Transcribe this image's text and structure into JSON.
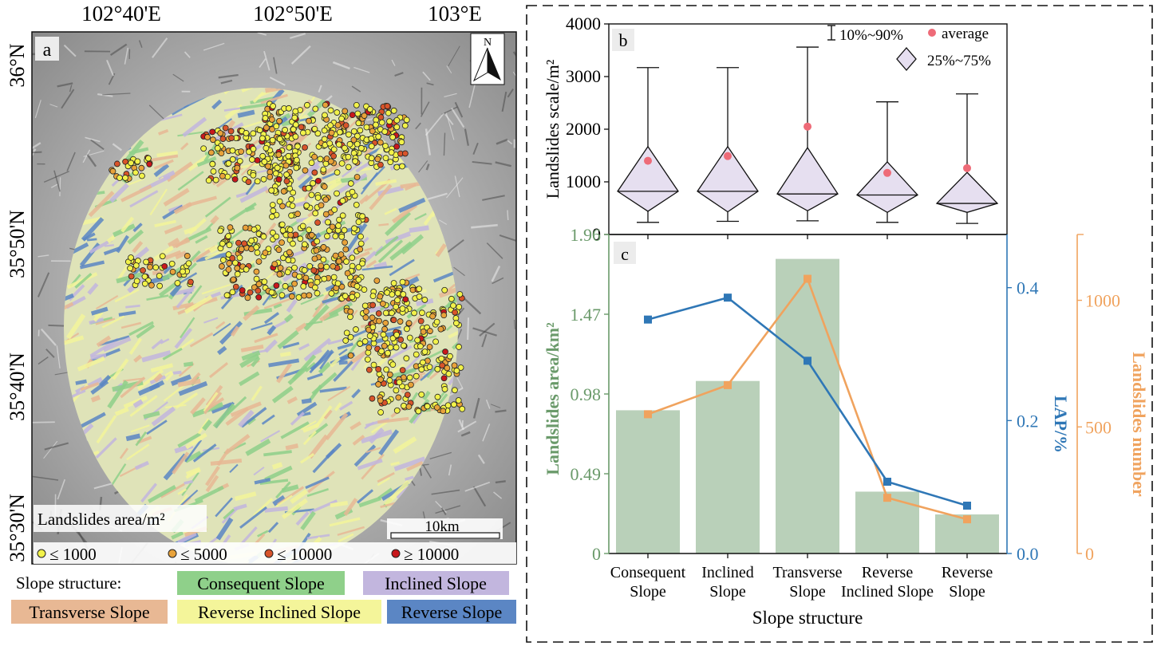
{
  "map": {
    "panel_label": "a",
    "lon_labels": [
      "102°40'E",
      "102°50'E",
      "103°E"
    ],
    "lat_labels": [
      "36°N",
      "35°50'N",
      "35°40'N",
      "35°30'N"
    ],
    "north_label": "N",
    "scale_label": "10km",
    "legend_title": "Landslides area/m²",
    "size_classes": [
      {
        "label": "≤ 1000",
        "color": "#f2f24a"
      },
      {
        "label": "≤ 5000",
        "color": "#e8a23a"
      },
      {
        "label": "≤ 10000",
        "color": "#d8542a"
      },
      {
        "label": "≥ 10000",
        "color": "#c8181c"
      }
    ],
    "slope_heading": "Slope structure:",
    "slope_classes": [
      {
        "label": "Consequent Slope",
        "color": "#8fd08a"
      },
      {
        "label": "Inclined Slope",
        "color": "#c2b6de"
      },
      {
        "label": "Transverse Slope",
        "color": "#e8b894"
      },
      {
        "label": "Reverse Inclined Slope",
        "color": "#f4f59a"
      },
      {
        "label": "Reverse Slope",
        "color": "#5b86c4"
      }
    ]
  },
  "chart_data": [
    {
      "panel": "b",
      "type": "box",
      "ylabel": "Landslides scale/m²",
      "ylim": [
        0,
        4000
      ],
      "yticks": [
        0,
        1000,
        2000,
        3000,
        4000
      ],
      "categories": [
        "Consequent Slope",
        "Inclined Slope",
        "Transverse Slope",
        "Reverse Inclined Slope",
        "Reverse Slope"
      ],
      "p10": [
        230,
        250,
        260,
        230,
        210
      ],
      "p90": [
        3170,
        3170,
        3560,
        2520,
        2670
      ],
      "p25": [
        440,
        430,
        450,
        420,
        420
      ],
      "p75": [
        1670,
        1670,
        1650,
        1380,
        1180
      ],
      "median": [
        820,
        820,
        770,
        750,
        590
      ],
      "mean": [
        1400,
        1490,
        2050,
        1170,
        1260
      ],
      "legend": {
        "whisker": "10%~90%",
        "mean": "average",
        "box": "25%~75%"
      },
      "colors": {
        "box_fill": "#e6dff0",
        "mean": "#ee6b78"
      }
    },
    {
      "panel": "c",
      "type": "bar+line",
      "categories": [
        "Consequent Slope",
        "Inclined Slope",
        "Transverse Slope",
        "Reverse Inclined Slope",
        "Reverse Slope"
      ],
      "xlabel": "Slope structure",
      "bars": {
        "name": "Landslides area/km²",
        "values": [
          0.88,
          1.06,
          1.81,
          0.38,
          0.24
        ],
        "axis": "left",
        "ylim": [
          0,
          1.96
        ],
        "ticks": [
          0,
          0.49,
          0.98,
          1.47,
          1.96
        ],
        "color": "#93b793"
      },
      "series": [
        {
          "name": "LAP/%",
          "values": [
            0.352,
            0.385,
            0.29,
            0.108,
            0.072
          ],
          "axis": "right1",
          "ylim": [
            0,
            0.48
          ],
          "ticks": [
            0.0,
            0.2,
            0.4
          ],
          "color": "#2f77b6"
        },
        {
          "name": "Landslides number",
          "values": [
            550,
            665,
            1085,
            220,
            135
          ],
          "axis": "right2",
          "ylim": [
            0,
            1260
          ],
          "ticks": [
            0,
            500,
            1000
          ],
          "color": "#f0a35e"
        }
      ],
      "left_ylabel": "Landslides area/km²",
      "right1_ylabel": "LAP/%",
      "right2_ylabel": "Landslides number",
      "tick_label_lines": [
        [
          "Consequent",
          "Slope"
        ],
        [
          "Inclined",
          "Slope"
        ],
        [
          "Transverse",
          "Slope"
        ],
        [
          "Reverse",
          "Inclined Slope"
        ],
        [
          "Reverse",
          "Slope"
        ]
      ],
      "colors": {
        "left_axis": "#6a9a6a"
      }
    }
  ]
}
